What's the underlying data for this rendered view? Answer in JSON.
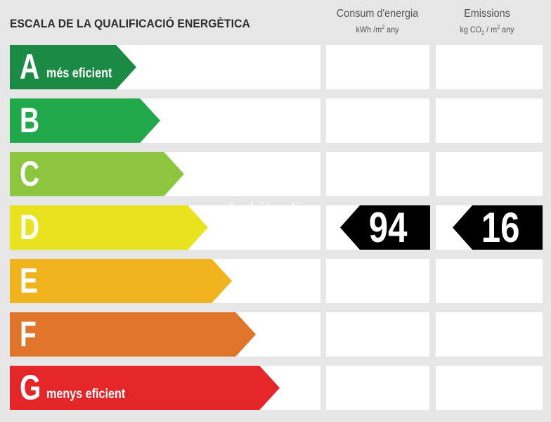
{
  "title": "ESCALA DE LA QUALIFICACIÓ ENERGÈTICA",
  "columns": {
    "consum": {
      "title": "Consum d'energia",
      "unit_main": "kWh /m",
      "unit_sup": "2",
      "unit_tail": " any"
    },
    "emissions": {
      "title": "Emissions",
      "unit_a": "kg CO",
      "unit_sub": "2",
      "unit_b": " / m",
      "unit_sup": "2",
      "unit_tail": " any"
    }
  },
  "ratings": [
    {
      "letter": "A",
      "label": "més eficient",
      "color": "#1a8a45"
    },
    {
      "letter": "B",
      "label": "",
      "color": "#21a84b"
    },
    {
      "letter": "C",
      "label": "",
      "color": "#8cc63f"
    },
    {
      "letter": "D",
      "label": "",
      "color": "#e8e21f"
    },
    {
      "letter": "E",
      "label": "",
      "color": "#f0b21d"
    },
    {
      "letter": "F",
      "label": "",
      "color": "#e0742a"
    },
    {
      "letter": "G",
      "label": "menys eficient",
      "color": "#e52629"
    }
  ],
  "current_rating": "D",
  "values": {
    "consum": "94",
    "emissions": "16"
  },
  "watermark": "habitaclia"
}
